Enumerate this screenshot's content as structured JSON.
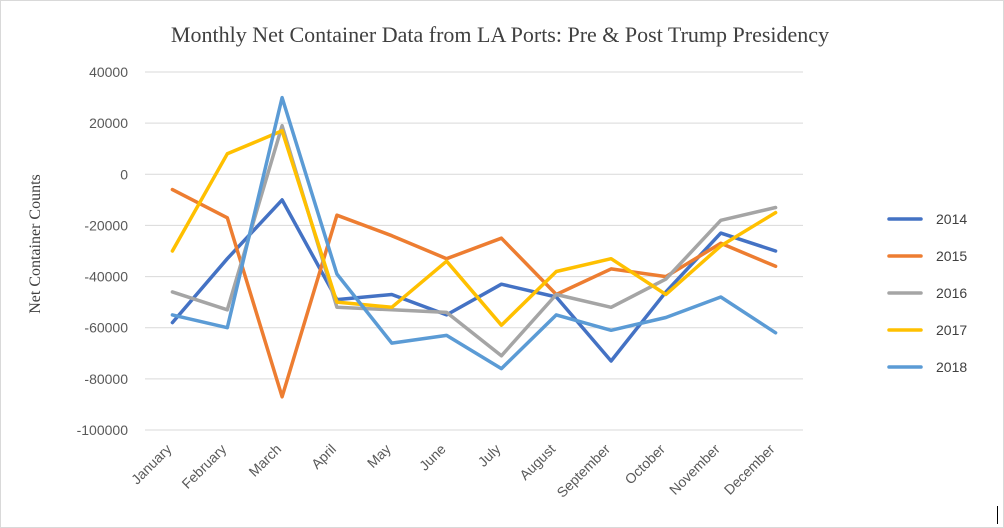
{
  "chart_data": {
    "type": "line",
    "title": "Monthly Net Container Data from LA Ports: Pre & Post Trump Presidency",
    "xlabel": "",
    "ylabel": "Net Container Counts",
    "ylim": [
      -100000,
      40000
    ],
    "yticks": [
      40000,
      20000,
      0,
      -20000,
      -40000,
      -60000,
      -80000,
      -100000
    ],
    "grid": true,
    "legend_position": "right",
    "categories": [
      "January",
      "February",
      "March",
      "April",
      "May",
      "June",
      "July",
      "August",
      "September",
      "October",
      "November",
      "December"
    ],
    "series": [
      {
        "name": "2014",
        "color": "#4472C4",
        "values": [
          -58000,
          -33000,
          -10000,
          -49000,
          -47000,
          -55000,
          -43000,
          -48000,
          -73000,
          -46000,
          -23000,
          -30000
        ]
      },
      {
        "name": "2015",
        "color": "#ED7D31",
        "values": [
          -6000,
          -17000,
          -87000,
          -16000,
          -24000,
          -33000,
          -25000,
          -47000,
          -37000,
          -40000,
          -27000,
          -36000
        ]
      },
      {
        "name": "2016",
        "color": "#A5A5A5",
        "values": [
          -46000,
          -53000,
          19000,
          -52000,
          -53000,
          -54000,
          -71000,
          -47000,
          -52000,
          -41000,
          -18000,
          -13000
        ]
      },
      {
        "name": "2017",
        "color": "#FFC000",
        "values": [
          -30000,
          8000,
          17000,
          -50000,
          -52000,
          -34000,
          -59000,
          -38000,
          -33000,
          -47000,
          -28000,
          -15000
        ]
      },
      {
        "name": "2018",
        "color": "#5B9BD5",
        "values": [
          -55000,
          -60000,
          30000,
          -39000,
          -66000,
          -63000,
          -76000,
          -55000,
          -61000,
          -56000,
          -48000,
          -62000
        ]
      }
    ]
  }
}
